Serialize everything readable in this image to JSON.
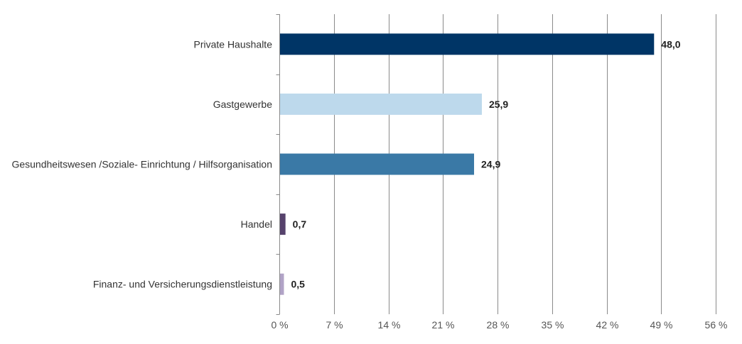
{
  "chart_data": {
    "type": "bar",
    "orientation": "horizontal",
    "categories": [
      "Private Haushalte",
      "Gastgewerbe",
      "Gesundheitswesen /Soziale- Einrichtung / Hilfsorganisation",
      "Handel",
      "Finanz- und Versicherungsdienstleistung"
    ],
    "values": [
      48.0,
      25.9,
      24.9,
      0.7,
      0.5
    ],
    "value_labels": [
      "48,0",
      "25,9",
      "24,9",
      "0,7",
      "0,5"
    ],
    "bar_colors": [
      "#003566",
      "#bdd9ec",
      "#3a79a6",
      "#56426c",
      "#b1a3c6"
    ],
    "xlim": [
      0,
      56
    ],
    "x_ticks": [
      0,
      7,
      14,
      21,
      28,
      35,
      42,
      49,
      56
    ],
    "x_tick_labels": [
      "0 %",
      "7 %",
      "14 %",
      "21 %",
      "28 %",
      "35 %",
      "42 %",
      "49 %",
      "56 %"
    ],
    "grid": true,
    "legend": "none",
    "title": "",
    "xlabel": "",
    "ylabel": ""
  }
}
